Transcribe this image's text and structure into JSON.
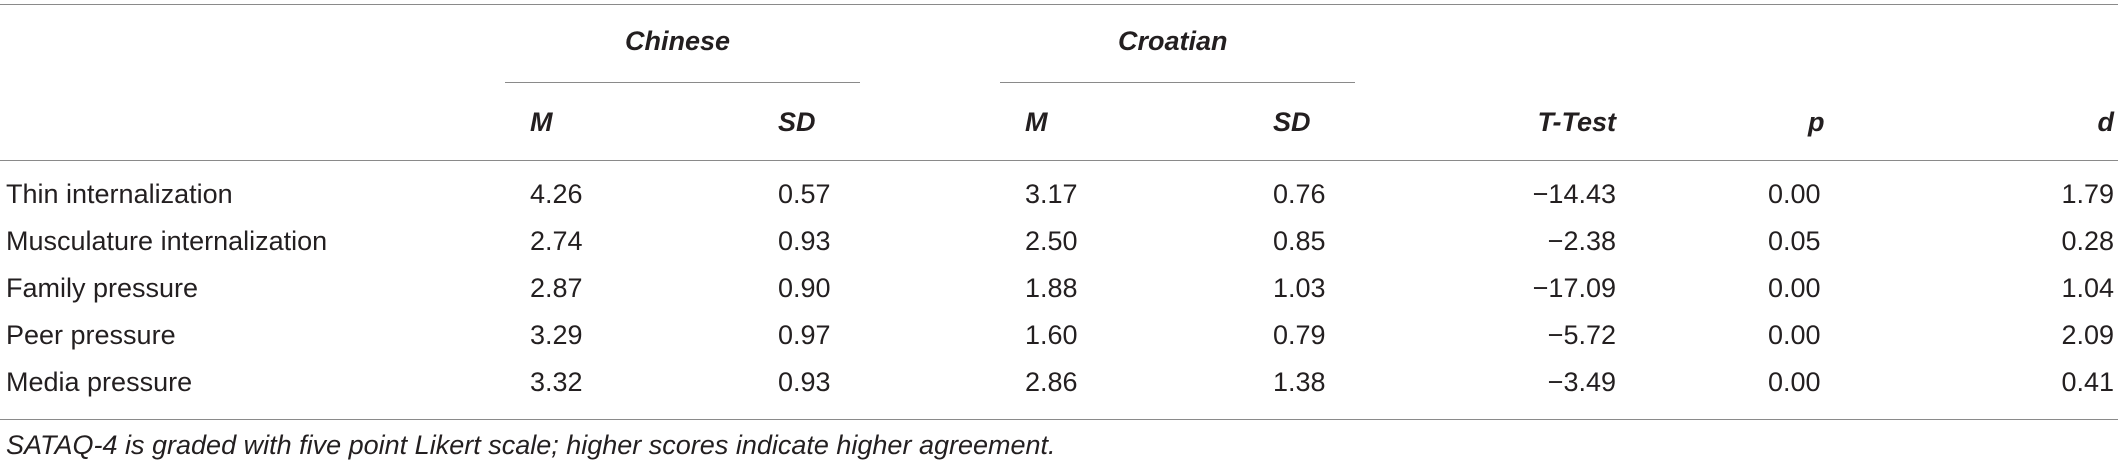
{
  "table": {
    "group_headers": {
      "chinese": "Chinese",
      "croatian": "Croatian"
    },
    "column_headers": {
      "chinese_m": "M",
      "chinese_sd": "SD",
      "croatian_m": "M",
      "croatian_sd": "SD",
      "ttest": "T-Test",
      "p": "p",
      "d": "d"
    },
    "rows": [
      {
        "label": "Thin internalization",
        "chinese_m": "4.26",
        "chinese_sd": "0.57",
        "croatian_m": "3.17",
        "croatian_sd": "0.76",
        "ttest": "−14.43",
        "p": "0.00",
        "d": "1.79"
      },
      {
        "label": "Musculature internalization",
        "chinese_m": "2.74",
        "chinese_sd": "0.93",
        "croatian_m": "2.50",
        "croatian_sd": "0.85",
        "ttest": "−2.38",
        "p": "0.05",
        "d": "0.28"
      },
      {
        "label": "Family pressure",
        "chinese_m": "2.87",
        "chinese_sd": "0.90",
        "croatian_m": "1.88",
        "croatian_sd": "1.03",
        "ttest": "−17.09",
        "p": "0.00",
        "d": "1.04"
      },
      {
        "label": "Peer pressure",
        "chinese_m": "3.29",
        "chinese_sd": "0.97",
        "croatian_m": "1.60",
        "croatian_sd": "0.79",
        "ttest": "−5.72",
        "p": "0.00",
        "d": "2.09"
      },
      {
        "label": "Media pressure",
        "chinese_m": "3.32",
        "chinese_sd": "0.93",
        "croatian_m": "2.86",
        "croatian_sd": "1.38",
        "ttest": "−3.49",
        "p": "0.00",
        "d": "0.41"
      }
    ],
    "footnote": "SATAQ-4 is graded with five point Likert scale; higher scores indicate higher agreement."
  }
}
